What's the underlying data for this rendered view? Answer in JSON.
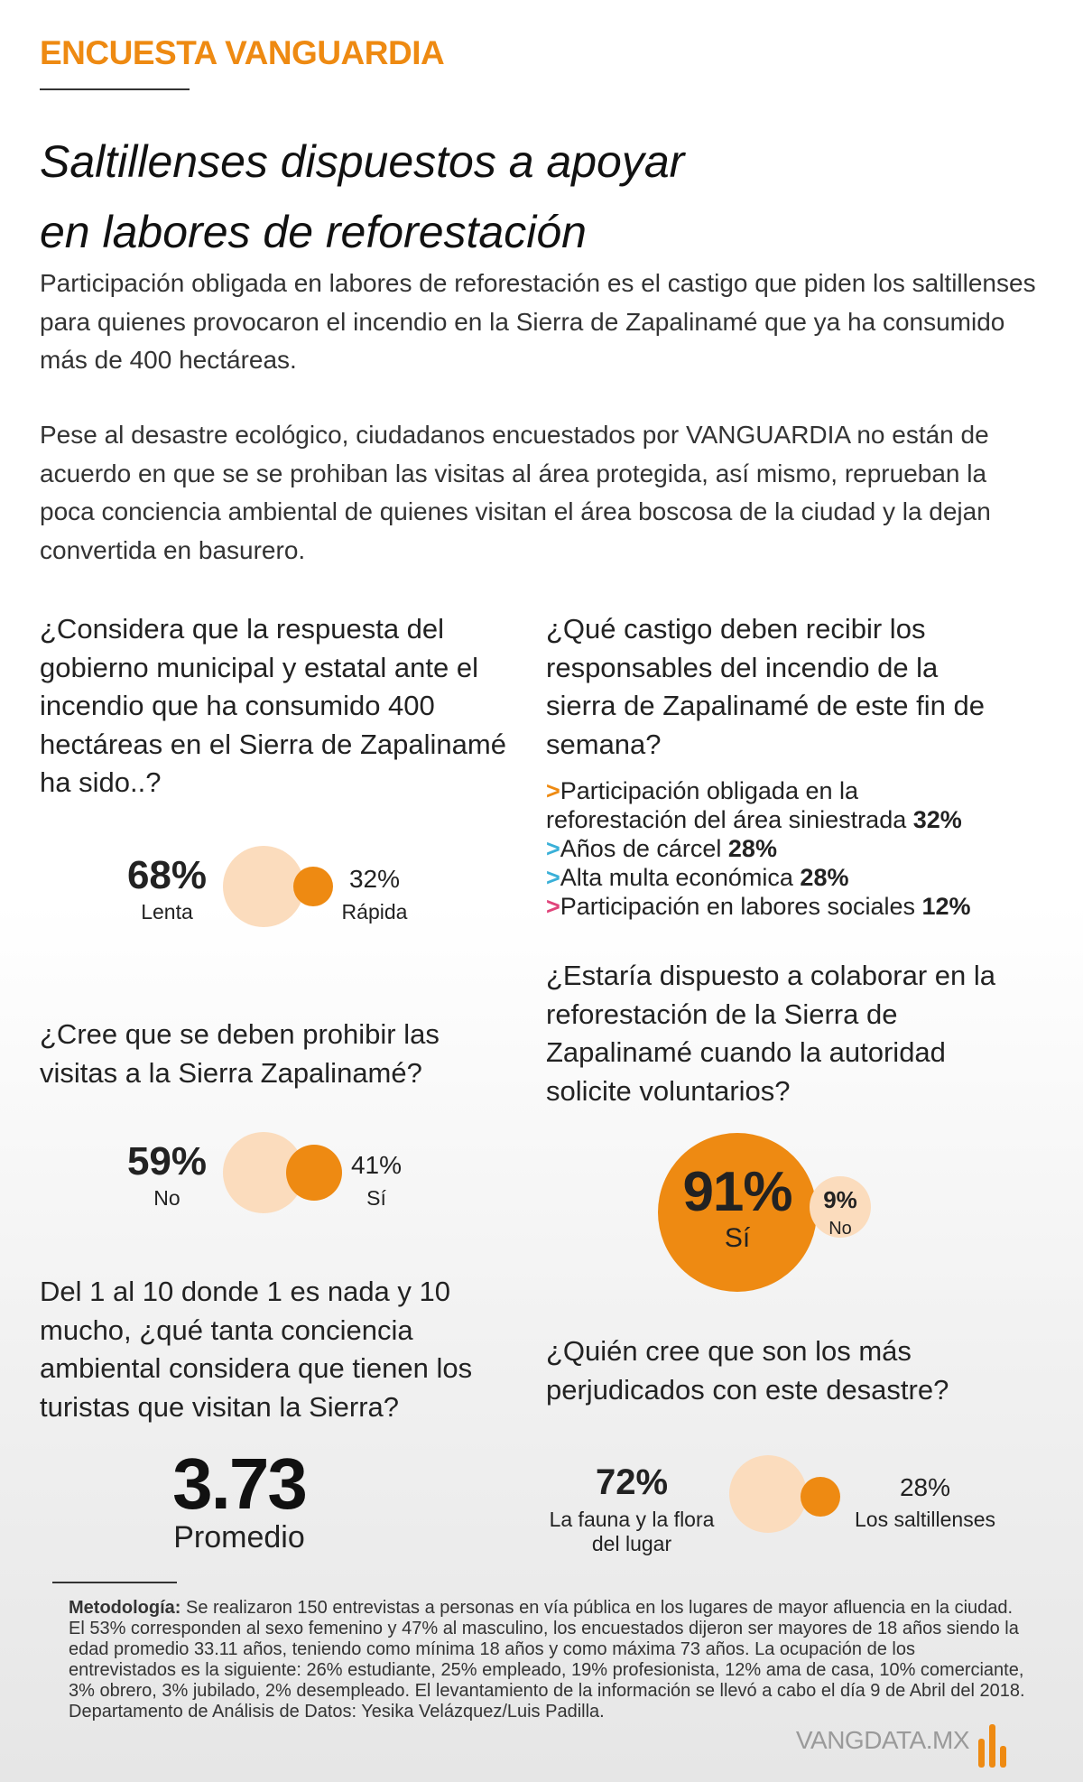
{
  "header": {
    "kicker": "ENCUESTA VANGUARDIA",
    "title_line1": "Saltillenses dispuestos a apoyar",
    "title_line2": "en labores de reforestación"
  },
  "intro": {
    "p1": "Participación obligada en labores de reforestación es el castigo que piden los saltillenses para quienes provocaron el incendio en la Sierra de Zapalinamé que ya ha consumido más de 400 hectáreas.",
    "p2": "Pese al desastre ecológico, ciudadanos encuestados por VANGUARDIA no están de acuerdo en que se se prohiban las visitas al área protegida, así mismo, reprueban la poca conciencia ambiental de quienes visitan el área boscosa de la ciudad y la dejan convertida en basurero."
  },
  "q1": {
    "question": "¿Considera que la respuesta del gobierno  municipal y estatal ante el incendio que ha consumido 400 hectáreas en el Sierra de Zapalinamé ha sido..?",
    "major_pct": "68%",
    "major_label": "Lenta",
    "minor_pct": "32%",
    "minor_label": "Rápida"
  },
  "q2": {
    "question": "¿Qué castigo deben recibir los responsables del incendio de la sierra de Zapalinamé de este fin de semana?",
    "options": [
      {
        "line1": "Participación obligada en la",
        "line2": "reforestación del área siniestrada",
        "pct": "32%",
        "arrow_color": "#ee8a12"
      },
      {
        "line1": "Años de cárcel",
        "pct": "28%",
        "arrow_color": "#3ab0d8"
      },
      {
        "line1": "Alta multa económica",
        "pct": "28%",
        "arrow_color": "#3ab0d8"
      },
      {
        "line1": "Participación en labores sociales",
        "pct": "12%",
        "arrow_color": "#e0457b"
      }
    ]
  },
  "q3": {
    "question": "¿Cree que se deben prohibir las visitas a la Sierra Zapalinamé?",
    "major_pct": "59%",
    "major_label": "No",
    "minor_pct": "41%",
    "minor_label": "Sí"
  },
  "q4": {
    "question": "¿Estaría dispuesto a colaborar en la reforestación de la Sierra de Zapalinamé cuando la autoridad solicite voluntarios?",
    "major_pct": "91%",
    "major_label": "Sí",
    "minor_pct": "9%",
    "minor_label": "No"
  },
  "q5": {
    "question": "Del 1 al 10 donde 1 es nada y 10 mucho, ¿qué tanta conciencia ambiental considera que tienen los turistas que visitan la Sierra?",
    "value": "3.73",
    "label": "Promedio"
  },
  "q6": {
    "question": "¿Quién cree que son los más perjudicados con este desastre?",
    "major_pct": "72%",
    "major_label_line1": "La fauna y la flora",
    "major_label_line2": "del lugar",
    "minor_pct": "28%",
    "minor_label": "Los saltillenses"
  },
  "methodology": {
    "heading": "Metodología:",
    "text": " Se realizaron 150 entrevistas a personas en vía pública en los lugares de mayor afluencia en la ciudad. El 53% corresponden al sexo femenino y 47% al masculino, los encuestados dijeron ser mayores de 18 años siendo la edad promedio 33.11 años, teniendo como mínima 18 años y como máxima 73 años. La ocupación de los entrevistados es la siguiente: 26% estudiante, 25% empleado, 19% profesionista, 12% ama de casa, 10% comerciante, 3% obrero, 3% jubilado, 2% desempleado. El levantamiento de la información se llevó a cabo el día 9 de Abril del 2018. Departamento de Análisis de Datos: Yesika Velázquez/Luis Padilla."
  },
  "footer": {
    "logo_text": "VANGDATA.MX"
  },
  "colors": {
    "accent": "#ee8a12",
    "light": "#fbdcbd"
  }
}
